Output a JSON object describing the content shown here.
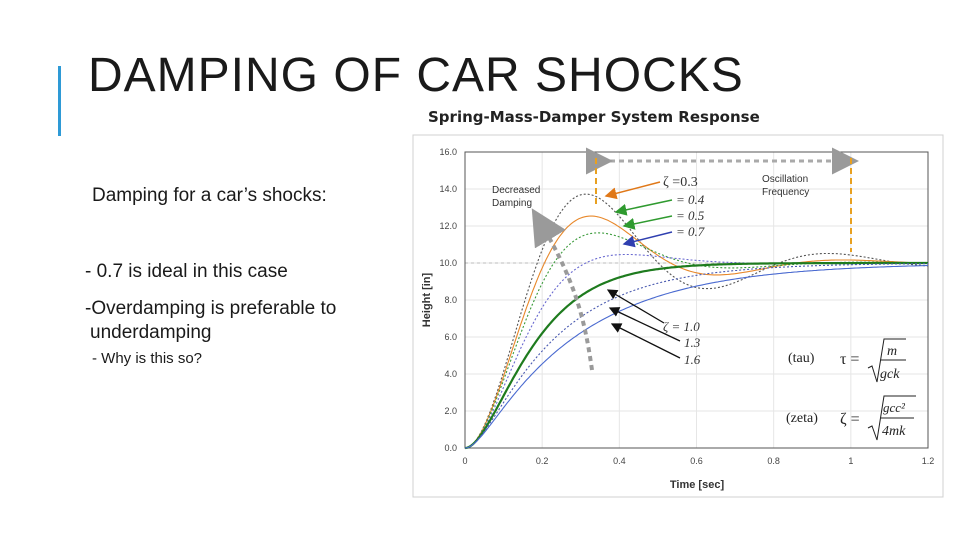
{
  "slide": {
    "title": "DAMPING OF CAR SHOCKS",
    "bullets": [
      "Damping for a car’s shocks:",
      "- 0.7 is ideal in this case",
      "-Overdamping is preferable to",
      "underdamping",
      "- Why is this so?"
    ],
    "accent_color": "#2e9ad6"
  },
  "chart_data": {
    "type": "line",
    "title": "Spring-Mass-Damper System Response",
    "xlabel": "Time [sec]",
    "ylabel": "Height [in]",
    "xlim": [
      0,
      1.2
    ],
    "ylim": [
      0,
      16
    ],
    "x_ticks": [
      "0",
      "0.2",
      "0.4",
      "0.6",
      "0.8",
      "1",
      "1.2"
    ],
    "y_ticks": [
      "0.0",
      "2.0",
      "4.0",
      "6.0",
      "8.0",
      "10.0",
      "12.0",
      "14.0",
      "16.0"
    ],
    "steady_state": 10,
    "series": [
      {
        "name": "ζ =0.3",
        "zeta": 0.3,
        "color": "#555555",
        "style": "dotted"
      },
      {
        "name": "= 0.4",
        "zeta": 0.4,
        "color": "#e8882a",
        "style": "solid"
      },
      {
        "name": "= 0.5",
        "zeta": 0.5,
        "color": "#3a9a3a",
        "style": "dotted"
      },
      {
        "name": "= 0.7",
        "zeta": 0.7,
        "color": "#6a6ad0",
        "style": "dotted"
      },
      {
        "name": "ζ = 1.0",
        "zeta": 1.0,
        "color": "#1e7b1e",
        "style": "bold"
      },
      {
        "name": "1.3",
        "zeta": 1.3,
        "color": "#4a5ab0",
        "style": "dotted"
      },
      {
        "name": "1.6",
        "zeta": 1.6,
        "color": "#4a6ad0",
        "style": "solid"
      }
    ],
    "annotations": {
      "decreased_damping": [
        "Decreased",
        "Damping"
      ],
      "oscillation_frequency": [
        "Oscillation",
        "Frequency"
      ],
      "zeta_high_labels": [
        "ζ =0.3",
        "= 0.4",
        "= 0.5",
        "= 0.7"
      ],
      "zeta_low_labels": [
        "ζ = 1.0",
        "1.3",
        "1.6"
      ],
      "tau_label": "(tau)",
      "tau_formula": "τ =",
      "tau_num": "m",
      "tau_den": "gck",
      "zeta_label": "(zeta)",
      "zeta_formula": "ζ =",
      "zeta_num": "gcc²",
      "zeta_den": "4mk"
    }
  }
}
